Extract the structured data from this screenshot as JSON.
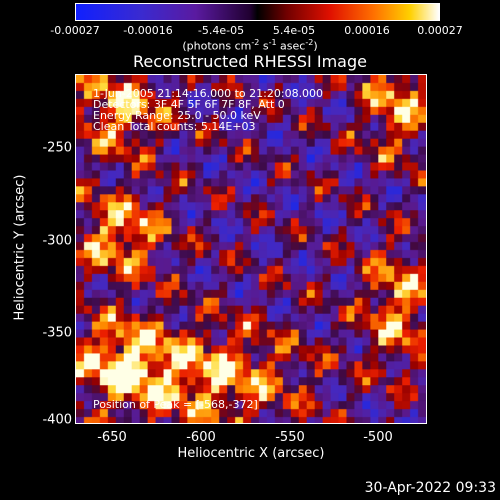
{
  "colorbar": {
    "ticks": [
      "-0.00027",
      "-0.00016",
      "-5.4e-05",
      "5.4e-05",
      "0.00016",
      "0.00027"
    ],
    "unit_main": "(photons cm",
    "unit_exp1": "-2",
    "unit_mid": " s",
    "unit_exp2": "-1",
    "unit_mid2": " asec",
    "unit_exp3": "-2",
    "unit_end": ")"
  },
  "chart_data": {
    "type": "heatmap",
    "title": "Reconstructed RHESSI Image",
    "xlabel": "Heliocentric X (arcsec)",
    "ylabel": "Heliocentric Y (arcsec)",
    "xlim": [
      -670,
      -474
    ],
    "ylim": [
      -402,
      -208
    ],
    "xticks": [
      "-650",
      "-600",
      "-550",
      "-500"
    ],
    "yticks": [
      "-250",
      "-300",
      "-350",
      "-400"
    ],
    "colorscale_range": [
      -0.00027,
      0.00027
    ],
    "annotations": {
      "time": "1-Jun-2005 21:14:16.000 to 21:20:08.000",
      "detectors": "Detectors: 3F 4F 5F 6F 7F 8F, Att 0",
      "energy": "Energy Range: 25.0 - 50.0 keV",
      "clean": "Clean     Total counts: 5.14E+03",
      "position": "Position of Peak = [-568,-372]"
    }
  },
  "timestamp": "30-Apr-2022 09:33"
}
